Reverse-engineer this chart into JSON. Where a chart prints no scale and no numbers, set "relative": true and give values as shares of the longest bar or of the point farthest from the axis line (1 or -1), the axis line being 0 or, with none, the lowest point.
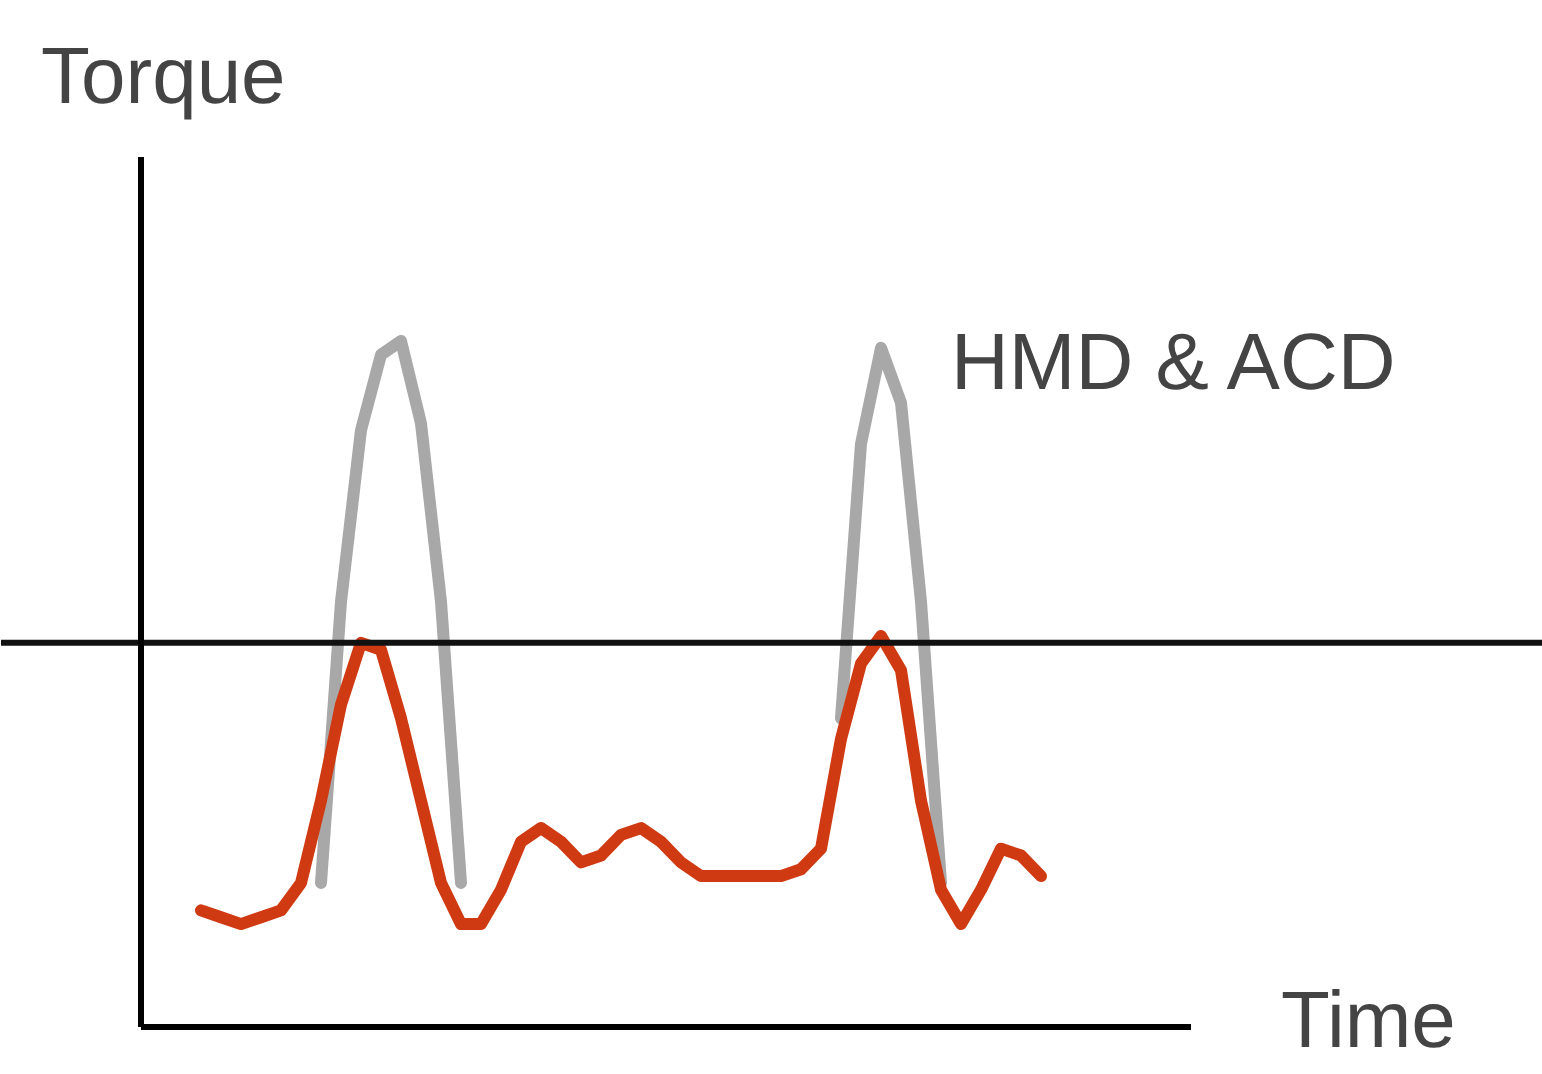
{
  "chart_data": {
    "type": "line",
    "relative": true,
    "xlabel": "Time",
    "ylabel": "Torque",
    "annotations": [
      "HMD & ACD"
    ],
    "categories": [
      null,
      null,
      null,
      null,
      null,
      null,
      null,
      null,
      null,
      null,
      null,
      null,
      null,
      null,
      null,
      null,
      null,
      null,
      null,
      null,
      null,
      null,
      null,
      null,
      null,
      null,
      null,
      null,
      null,
      null,
      null,
      null,
      null,
      null,
      null,
      null,
      null,
      null,
      null,
      null,
      null,
      null,
      null
    ],
    "series": [
      {
        "color": "#a8a8a8",
        "values": [
          null,
          null,
          null,
          null,
          null,
          null,
          0.21,
          0.62,
          0.87,
          0.98,
          1.0,
          0.88,
          0.62,
          0.21,
          null,
          null,
          null,
          null,
          null,
          null,
          null,
          null,
          null,
          null,
          null,
          null,
          null,
          null,
          null,
          null,
          null,
          null,
          0.45,
          0.85,
          0.99,
          0.91,
          0.62,
          0.21,
          null,
          null,
          null,
          null,
          null
        ]
      },
      {
        "color": "#d03a12",
        "values": [
          0.17,
          0.16,
          0.15,
          0.16,
          0.17,
          0.21,
          0.33,
          0.47,
          0.56,
          0.55,
          0.45,
          0.33,
          0.21,
          0.15,
          0.15,
          0.2,
          0.27,
          0.29,
          0.27,
          0.24,
          0.25,
          0.28,
          0.29,
          0.27,
          0.24,
          0.22,
          0.22,
          0.22,
          0.22,
          0.22,
          0.23,
          0.26,
          0.42,
          0.53,
          0.57,
          0.52,
          0.33,
          0.2,
          0.15,
          0.2,
          0.26,
          0.25,
          0.22
        ]
      }
    ],
    "ref_lines": [
      {
        "axis": "y",
        "value": 0.56,
        "color": "#111111"
      }
    ]
  }
}
